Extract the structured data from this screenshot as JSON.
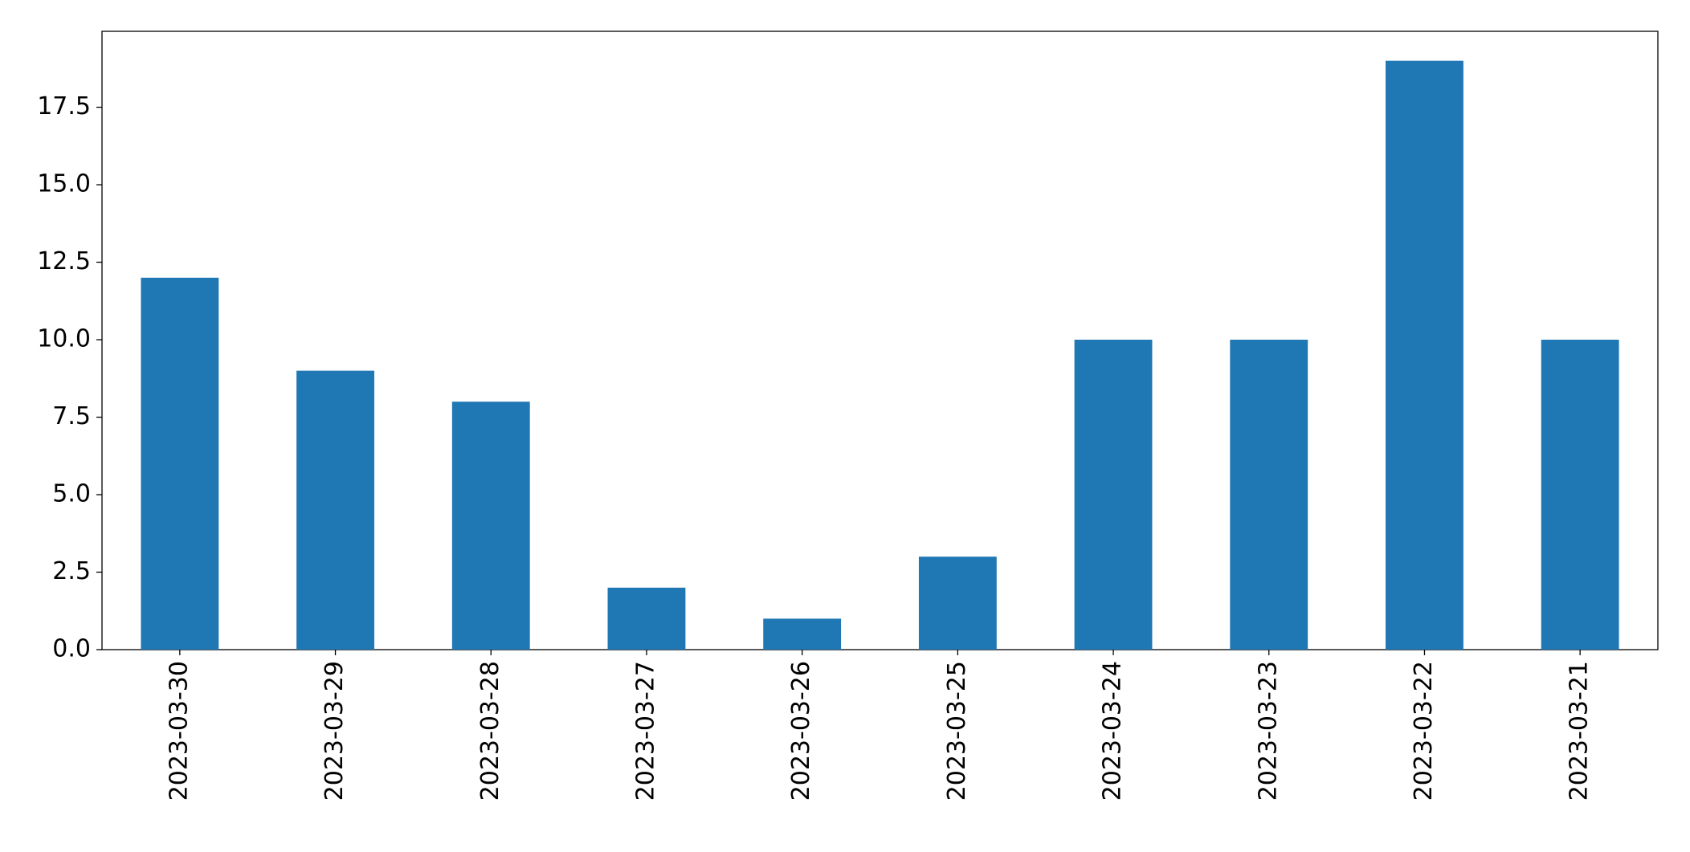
{
  "chart_data": {
    "type": "bar",
    "categories": [
      "2023-03-30",
      "2023-03-29",
      "2023-03-28",
      "2023-03-27",
      "2023-03-26",
      "2023-03-25",
      "2023-03-24",
      "2023-03-23",
      "2023-03-22",
      "2023-03-21"
    ],
    "values": [
      12,
      9,
      8,
      2,
      1,
      3,
      10,
      10,
      19,
      10
    ],
    "color": "#1f77b4",
    "ylim": [
      0,
      19.95
    ],
    "yticks": [
      {
        "value": 0,
        "label": "0.0"
      },
      2.5,
      {
        "value": 5,
        "label": "5.0"
      },
      7.5,
      {
        "value": 10,
        "label": "10.0"
      },
      12.5,
      {
        "value": 15,
        "label": "15.0"
      },
      17.5
    ],
    "grid": false
  }
}
